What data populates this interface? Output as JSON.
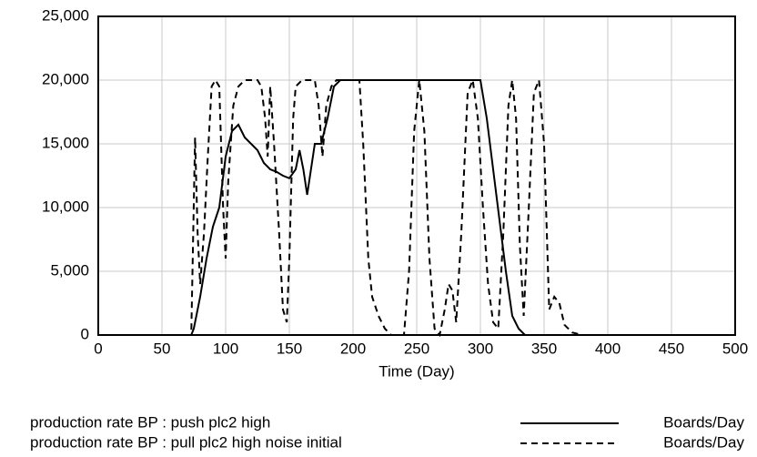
{
  "chart_data": {
    "type": "line",
    "x_label": "Time (Day)",
    "xlim": [
      0,
      500
    ],
    "xticks": [
      0,
      50,
      100,
      150,
      200,
      250,
      300,
      350,
      400,
      450,
      500
    ],
    "ylim": [
      0,
      25000
    ],
    "yticks": [
      0,
      {
        "value": 5000,
        "label": "5,000"
      },
      {
        "value": 10000,
        "label": "10,000"
      },
      {
        "value": 15000,
        "label": "15,000"
      },
      {
        "value": 20000,
        "label": "20,000"
      },
      {
        "value": 25000,
        "label": "25,000"
      }
    ],
    "grid": true,
    "series": [
      {
        "name": "production rate BP : push plc2 high",
        "unit": "Boards/Day",
        "color": "#000000",
        "dash": false,
        "x": [
          0,
          73,
          75,
          80,
          85,
          90,
          95,
          100,
          105,
          110,
          115,
          120,
          125,
          130,
          135,
          140,
          145,
          150,
          155,
          158,
          161,
          164,
          167,
          170,
          175,
          180,
          185,
          190,
          300,
          305,
          310,
          315,
          320,
          325,
          330,
          335,
          500
        ],
        "values": [
          0,
          0,
          500,
          3000,
          6000,
          8500,
          10000,
          14000,
          16000,
          16500,
          15500,
          15000,
          14500,
          13500,
          13000,
          12800,
          12500,
          12300,
          13000,
          14500,
          13000,
          11000,
          13000,
          15000,
          15000,
          17000,
          19500,
          20000,
          20000,
          17000,
          13000,
          9000,
          5000,
          1500,
          500,
          0,
          0
        ]
      },
      {
        "name": "production rate BP : pull plc2 high noise initial",
        "unit": "Boards/Day",
        "color": "#000000",
        "dash": true,
        "x": [
          0,
          73,
          76,
          78,
          80,
          83,
          86,
          89,
          92,
          95,
          98,
          100,
          102,
          106,
          110,
          115,
          125,
          128,
          131,
          133,
          135,
          138,
          142,
          145,
          148,
          150,
          153,
          155,
          160,
          170,
          173,
          176,
          179,
          183,
          187,
          205,
          208,
          212,
          215,
          220,
          225,
          230,
          240,
          244,
          248,
          252,
          256,
          260,
          264,
          268,
          272,
          275,
          278,
          281,
          285,
          290,
          294,
          298,
          302,
          306,
          310,
          314,
          318,
          322,
          325,
          328,
          331,
          334,
          338,
          342,
          346,
          350,
          354,
          358,
          362,
          366,
          372,
          380,
          500
        ],
        "values": [
          0,
          0,
          15500,
          8000,
          4000,
          8000,
          14000,
          19500,
          20000,
          19500,
          10000,
          6000,
          12000,
          18000,
          19500,
          20000,
          20000,
          19500,
          17000,
          14000,
          19500,
          15000,
          8000,
          2000,
          1000,
          6000,
          17000,
          19500,
          20000,
          20000,
          18000,
          14000,
          18000,
          19500,
          20000,
          20000,
          15000,
          6000,
          3000,
          1500,
          500,
          0,
          0,
          5000,
          16000,
          20000,
          16000,
          6000,
          500,
          0,
          2000,
          4000,
          3500,
          1000,
          8000,
          19000,
          20000,
          17000,
          10000,
          4000,
          1000,
          500,
          8000,
          18000,
          20000,
          17000,
          7000,
          1500,
          10000,
          19000,
          20000,
          15000,
          2000,
          3000,
          2500,
          800,
          200,
          0,
          0
        ]
      }
    ]
  }
}
